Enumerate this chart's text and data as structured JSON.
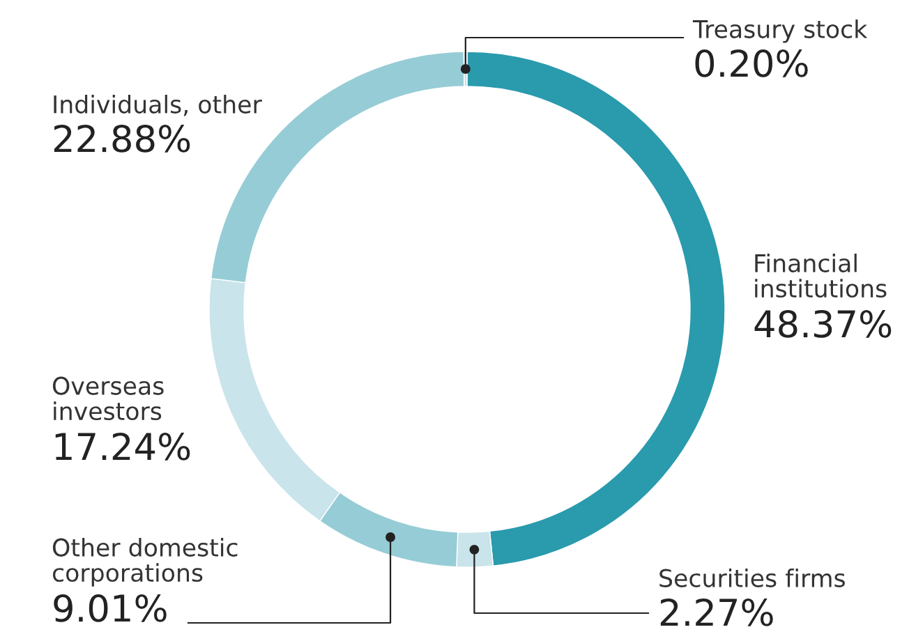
{
  "chart_data": {
    "type": "donut",
    "categories": [
      "Financial\ninstitutions",
      "Securities firms",
      "Other domestic\ncorporations",
      "Overseas\ninvestors",
      "Individuals, other",
      "Treasury stock"
    ],
    "values": [
      48.37,
      2.27,
      9.01,
      17.24,
      22.88,
      0.2
    ],
    "colors": [
      "#2a9aad",
      "#c9e4ea",
      "#96ccd6",
      "#c9e4ea",
      "#96ccd6",
      "#c9e4ea"
    ],
    "value_labels": [
      "48.37%",
      "2.27%",
      "9.01%",
      "17.24%",
      "22.88%",
      "0.20%"
    ],
    "legend": false
  }
}
